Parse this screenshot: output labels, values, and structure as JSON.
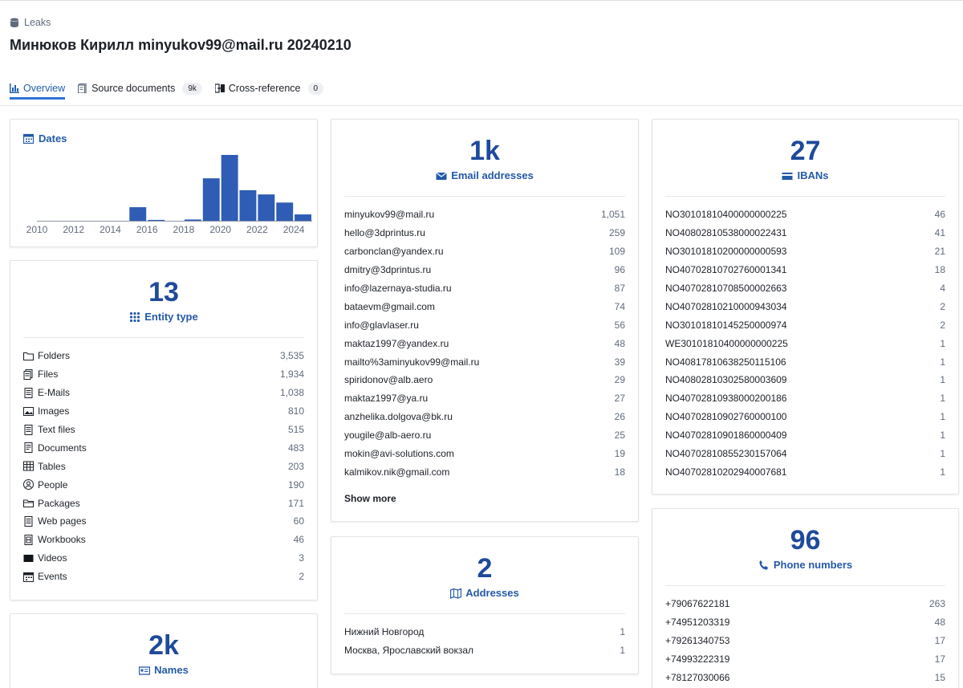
{
  "breadcrumb": {
    "label": "Leaks",
    "icon": "database-icon"
  },
  "title": "Минюков Кирилл minyukov99@mail.ru 20240210",
  "tabs": [
    {
      "label": "Overview",
      "icon": "chart-icon",
      "active": true
    },
    {
      "label": "Source documents",
      "icon": "document-icon",
      "badge": "9k"
    },
    {
      "label": "Cross-reference",
      "icon": "cross-reference-icon",
      "badge": "0"
    }
  ],
  "dates": {
    "title": "Dates",
    "chart_data": {
      "type": "bar",
      "x": [
        2010,
        2011,
        2012,
        2013,
        2014,
        2015,
        2016,
        2017,
        2018,
        2019,
        2020,
        2021,
        2022,
        2023,
        2024
      ],
      "values": [
        0,
        0,
        0,
        0,
        0,
        32,
        2,
        0,
        3,
        100,
        155,
        72,
        62,
        43,
        15
      ],
      "tick_labels": [
        "2010",
        "2012",
        "2014",
        "2016",
        "2018",
        "2020",
        "2022",
        "2024"
      ],
      "color": "#2f5cb4"
    }
  },
  "entity_type": {
    "count": "13",
    "label": "Entity type",
    "items": [
      {
        "label": "Folders",
        "value": "3,535",
        "icon": "folder-icon"
      },
      {
        "label": "Files",
        "value": "1,934",
        "icon": "file-icon"
      },
      {
        "label": "E-Mails",
        "value": "1,038",
        "icon": "email-icon"
      },
      {
        "label": "Images",
        "value": "810",
        "icon": "image-icon"
      },
      {
        "label": "Text files",
        "value": "515",
        "icon": "text-file-icon"
      },
      {
        "label": "Documents",
        "value": "483",
        "icon": "document-icon"
      },
      {
        "label": "Tables",
        "value": "203",
        "icon": "table-icon"
      },
      {
        "label": "People",
        "value": "190",
        "icon": "person-icon"
      },
      {
        "label": "Packages",
        "value": "171",
        "icon": "package-icon"
      },
      {
        "label": "Web pages",
        "value": "60",
        "icon": "web-page-icon"
      },
      {
        "label": "Workbooks",
        "value": "46",
        "icon": "workbook-icon"
      },
      {
        "label": "Videos",
        "value": "3",
        "icon": "video-icon"
      },
      {
        "label": "Events",
        "value": "2",
        "icon": "event-icon"
      }
    ]
  },
  "names": {
    "count": "2k",
    "label": "Names"
  },
  "emails": {
    "count": "1k",
    "label": "Email addresses",
    "items": [
      {
        "label": "minyukov99@mail.ru",
        "value": "1,051"
      },
      {
        "label": "hello@3dprintus.ru",
        "value": "259"
      },
      {
        "label": "carbonclan@yandex.ru",
        "value": "109"
      },
      {
        "label": "dmitry@3dprintus.ru",
        "value": "96"
      },
      {
        "label": "info@lazernaya-studia.ru",
        "value": "87"
      },
      {
        "label": "bataevm@gmail.com",
        "value": "74"
      },
      {
        "label": "info@glavlaser.ru",
        "value": "56"
      },
      {
        "label": "maktaz1997@yandex.ru",
        "value": "48"
      },
      {
        "label": "mailto%3aminyukov99@mail.ru",
        "value": "39"
      },
      {
        "label": "spiridonov@alb.aero",
        "value": "29"
      },
      {
        "label": "maktaz1997@ya.ru",
        "value": "27"
      },
      {
        "label": "anzhelika.dolgova@bk.ru",
        "value": "26"
      },
      {
        "label": "yougile@alb-aero.ru",
        "value": "25"
      },
      {
        "label": "mokin@avi-solutions.com",
        "value": "19"
      },
      {
        "label": "kalmikov.nik@gmail.com",
        "value": "18"
      }
    ],
    "show_more": "Show more"
  },
  "addresses": {
    "count": "2",
    "label": "Addresses",
    "items": [
      {
        "label": "Нижний Новгород",
        "value": "1"
      },
      {
        "label": "Москва, Ярославский вокзал",
        "value": "1"
      }
    ]
  },
  "ibans": {
    "count": "27",
    "label": "IBANs",
    "items": [
      {
        "label": "NO30101810400000000225",
        "value": "46"
      },
      {
        "label": "NO40802810538000022431",
        "value": "41"
      },
      {
        "label": "NO30101810200000000593",
        "value": "21"
      },
      {
        "label": "NO40702810702760001341",
        "value": "18"
      },
      {
        "label": "NO40702810708500002663",
        "value": "4"
      },
      {
        "label": "NO40702810210000943034",
        "value": "2"
      },
      {
        "label": "NO30101810145250000974",
        "value": "2"
      },
      {
        "label": "WE30101810400000000225",
        "value": "1"
      },
      {
        "label": "NO40817810638250115106",
        "value": "1"
      },
      {
        "label": "NO40802810302580003609",
        "value": "1"
      },
      {
        "label": "NO40702810938000200186",
        "value": "1"
      },
      {
        "label": "NO40702810902760000100",
        "value": "1"
      },
      {
        "label": "NO40702810901860000409",
        "value": "1"
      },
      {
        "label": "NO40702810855230157064",
        "value": "1"
      },
      {
        "label": "NO40702810202940007681",
        "value": "1"
      }
    ]
  },
  "phones": {
    "count": "96",
    "label": "Phone numbers",
    "items": [
      {
        "label": "+79067622181",
        "value": "263"
      },
      {
        "label": "+74951203319",
        "value": "48"
      },
      {
        "label": "+79261340753",
        "value": "17"
      },
      {
        "label": "+74993222319",
        "value": "17"
      },
      {
        "label": "+78127030066",
        "value": "15"
      }
    ]
  }
}
